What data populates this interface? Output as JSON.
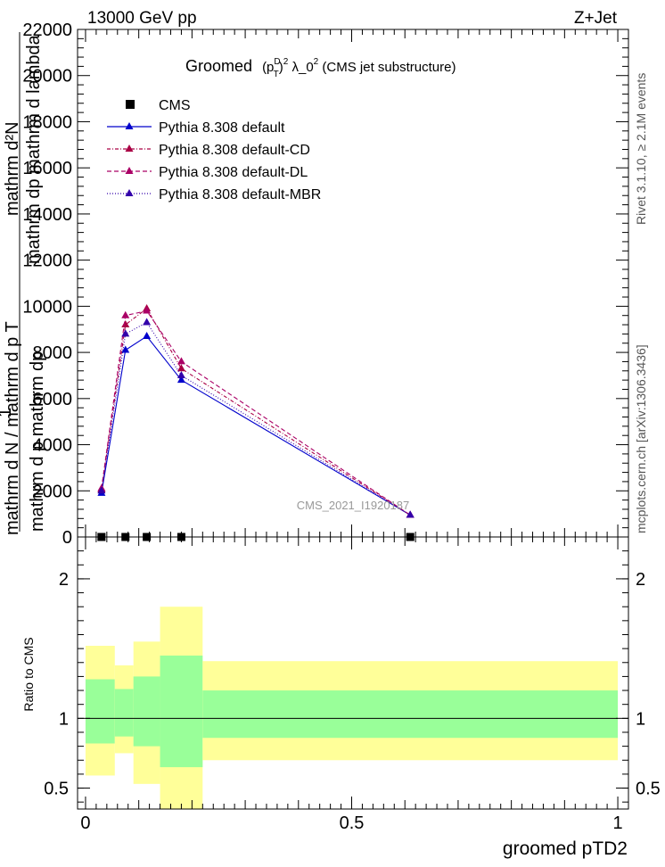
{
  "header": {
    "left": "13000 GeV pp",
    "right": "Z+Jet"
  },
  "side_labels": {
    "rivet": "Rivet 3.1.10, ≥ 2.1M events",
    "mcplots": "mcplots.cern.ch [arXiv:1306.3436]"
  },
  "chart_data": [
    {
      "type": "line",
      "title_main": "Groomed",
      "title_formula": "(p",
      "title_sup": "D",
      "title_sub": "T",
      "title_rest": ")",
      "title_exp": "2",
      "title_lambda": " λ_0",
      "title_exp2": "2",
      "title_tail": " (CMS jet substructure)",
      "ylabel": "1 / mathrm d N / mathrm d p_T mathrm d p_T mathrm d lambda  mathrm d^2N",
      "ylabel_lines": [
        "mathrm d²N",
        "mathrm dp  mathrm d lambda",
        "mathrm d p  mathrm dp",
        "1",
        "mathrm d N / mathrm d p  T"
      ],
      "watermark": "CMS_2021_I1920187",
      "ylim": [
        0,
        22000
      ],
      "xlim": [
        -0.015,
        1.02
      ],
      "y_ticks": [
        "22000",
        "20000",
        "18000",
        "16000",
        "14000",
        "12000",
        "10000",
        "8000",
        "6000",
        "4000",
        "2000",
        "0"
      ],
      "y_tick_values": [
        22000,
        20000,
        18000,
        16000,
        14000,
        12000,
        10000,
        8000,
        6000,
        4000,
        2000,
        0
      ],
      "legend": [
        {
          "name": "CMS",
          "color": "#000000",
          "style": "marker"
        },
        {
          "name": "Pythia 8.308 default",
          "color": "#0000cc",
          "style": "solid"
        },
        {
          "name": "Pythia 8.308 default-CD",
          "color": "#aa0044",
          "style": "dashdot"
        },
        {
          "name": "Pythia 8.308 default-DL",
          "color": "#aa0066",
          "style": "dash"
        },
        {
          "name": "Pythia 8.308 default-MBR",
          "color": "#3300aa",
          "style": "dot"
        }
      ],
      "cms_points": {
        "x": [
          0.03,
          0.075,
          0.115,
          0.18,
          0.61
        ],
        "y": [
          0,
          0,
          0,
          0,
          0
        ]
      },
      "series": [
        {
          "name": "Pythia 8.308 default",
          "x": [
            0.03,
            0.075,
            0.115,
            0.18,
            0.61
          ],
          "y": [
            1900,
            8100,
            8700,
            6800,
            950
          ]
        },
        {
          "name": "Pythia 8.308 default-CD",
          "x": [
            0.03,
            0.075,
            0.115,
            0.18,
            0.61
          ],
          "y": [
            2050,
            9200,
            9900,
            7300,
            950
          ]
        },
        {
          "name": "Pythia 8.308 default-DL",
          "x": [
            0.03,
            0.075,
            0.115,
            0.18,
            0.61
          ],
          "y": [
            2100,
            9600,
            9800,
            7600,
            950
          ]
        },
        {
          "name": "Pythia 8.308 default-MBR",
          "x": [
            0.03,
            0.075,
            0.115,
            0.18,
            0.61
          ],
          "y": [
            2000,
            8800,
            9300,
            7000,
            950
          ]
        }
      ]
    },
    {
      "type": "area",
      "ylabel": "Ratio to CMS",
      "xlabel": "groomed pTD2",
      "ylim": [
        0.35,
        2.3
      ],
      "xlim": [
        -0.015,
        1.02
      ],
      "y_ticks": [
        "2",
        "1",
        "0.5"
      ],
      "y_tick_values": [
        2,
        1,
        0.5
      ],
      "x_ticks": [
        "0",
        "0.5",
        "1"
      ],
      "x_tick_values": [
        0,
        0.5,
        1
      ],
      "bands": [
        {
          "x0": 0.0,
          "x1": 0.055,
          "stat_lo": 0.82,
          "stat_hi": 1.28,
          "tot_lo": 0.59,
          "tot_hi": 1.52
        },
        {
          "x0": 0.055,
          "x1": 0.09,
          "stat_lo": 0.87,
          "stat_hi": 1.21,
          "tot_lo": 0.75,
          "tot_hi": 1.38
        },
        {
          "x0": 0.09,
          "x1": 0.14,
          "stat_lo": 0.8,
          "stat_hi": 1.3,
          "tot_lo": 0.53,
          "tot_hi": 1.55
        },
        {
          "x0": 0.14,
          "x1": 0.22,
          "stat_lo": 0.65,
          "stat_hi": 1.45,
          "tot_lo": 0.35,
          "tot_hi": 1.8
        },
        {
          "x0": 0.22,
          "x1": 1.0,
          "stat_lo": 0.86,
          "stat_hi": 1.2,
          "tot_lo": 0.7,
          "tot_hi": 1.41
        }
      ],
      "stat_color": "#99ff99",
      "tot_color": "#ffff99"
    }
  ]
}
